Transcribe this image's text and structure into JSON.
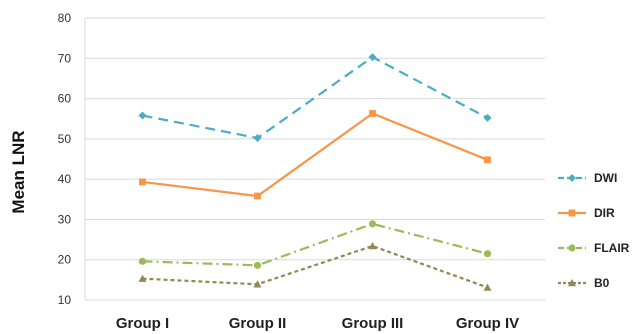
{
  "chart_data": {
    "type": "line",
    "ylabel": "Mean LNR",
    "xlabel": "",
    "ylim": [
      10,
      80
    ],
    "yticks": [
      "10",
      "20",
      "30",
      "40",
      "50",
      "60",
      "70",
      "80"
    ],
    "categories": [
      "Group I",
      "Group II",
      "Group III",
      "Group IV"
    ],
    "grid": "horizontal",
    "legend_position": "right",
    "series": [
      {
        "name": "DWI",
        "values": [
          55.8,
          50.2,
          70.3,
          55.2
        ],
        "color": "#4BACC6",
        "marker": "diamond",
        "dash": "dash"
      },
      {
        "name": "DIR",
        "values": [
          39.3,
          35.8,
          56.3,
          44.8
        ],
        "color": "#F79646",
        "marker": "square",
        "dash": "solid"
      },
      {
        "name": "FLAIR",
        "values": [
          19.6,
          18.6,
          28.9,
          21.5
        ],
        "color": "#9BBB59",
        "marker": "circle",
        "dash": "dashdot"
      },
      {
        "name": "B0",
        "values": [
          15.3,
          13.9,
          23.4,
          13.1
        ],
        "color": "#938953",
        "marker": "triangle",
        "dash": "dot"
      }
    ]
  }
}
